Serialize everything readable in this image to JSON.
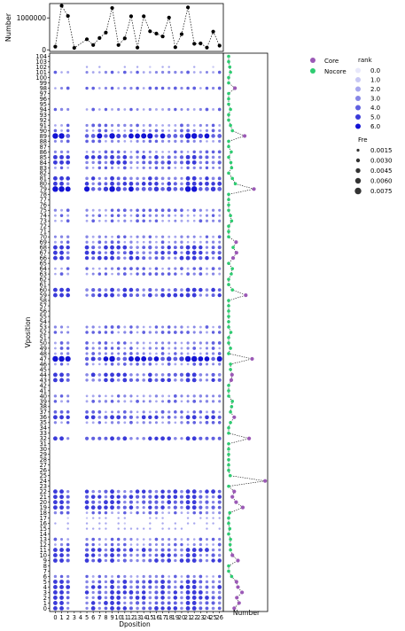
{
  "chart_data": [
    {
      "type": "scatter",
      "panel": "top-marginal",
      "ylabel": "Number",
      "yticks": [
        0,
        1000000
      ],
      "ytick_labels": [
        "0",
        "1000000"
      ],
      "ylim": [
        -50000,
        1450000
      ],
      "x": [
        0,
        1,
        2,
        3,
        4,
        5,
        6,
        7,
        8,
        9,
        10,
        11,
        12,
        13,
        14,
        15,
        16,
        17,
        18,
        19,
        20,
        21,
        22,
        23,
        24,
        25,
        26
      ],
      "y": [
        100000,
        1380000,
        1060000,
        60000,
        null,
        330000,
        150000,
        370000,
        540000,
        1310000,
        150000,
        360000,
        1050000,
        70000,
        1050000,
        580000,
        510000,
        420000,
        1010000,
        80000,
        490000,
        1330000,
        190000,
        200000,
        70000,
        570000,
        130000
      ]
    },
    {
      "type": "scatter",
      "panel": "main",
      "xlabel": "Dposition",
      "ylabel": "Vposition",
      "xticks": [
        0,
        1,
        2,
        3,
        4,
        5,
        6,
        7,
        8,
        9,
        10,
        11,
        12,
        13,
        14,
        15,
        16,
        17,
        18,
        19,
        20,
        21,
        22,
        23,
        24,
        25,
        26
      ],
      "xlim": [
        -0.9,
        26.6
      ],
      "ylim": [
        -0.6,
        104.6
      ],
      "yticks_from": 0,
      "yticks_to": 104,
      "empty_columns": [
        3,
        4
      ],
      "empty_rows": [
        7,
        8,
        14,
        23,
        24,
        25,
        26,
        27,
        28,
        29,
        30,
        31,
        33,
        34,
        38,
        41,
        42,
        45,
        51,
        54,
        55,
        56,
        57,
        58,
        61,
        62,
        65,
        71,
        72,
        76,
        77,
        78,
        82,
        87,
        92,
        93,
        95,
        96,
        97,
        99,
        100,
        103,
        104
      ],
      "sparse_rows": [
        15,
        16,
        17,
        26,
        27,
        28,
        29,
        30,
        31,
        57,
        102,
        103
      ],
      "strong_rows": [
        0,
        1,
        2,
        3,
        4,
        5,
        9,
        10,
        11,
        19,
        20,
        21,
        22,
        24,
        32,
        36,
        43,
        44,
        47,
        59,
        60,
        66,
        67,
        68,
        79,
        80,
        81,
        84,
        85,
        89
      ],
      "peak_rows": [
        24,
        47,
        79,
        89
      ],
      "heavy_columns": [
        0,
        1,
        9,
        21,
        22
      ],
      "legend_rank": {
        "title": "rank",
        "levels": [
          "0.0",
          "1.0",
          "2.0",
          "3.0",
          "4.0",
          "5.0",
          "6.0"
        ],
        "colors": [
          "#e8e8fb",
          "#c8c8f4",
          "#a7a7ee",
          "#8686e6",
          "#6060e0",
          "#3a3ad9",
          "#1212d4"
        ]
      },
      "legend_size": {
        "title": "Fre",
        "levels": [
          "0.0015",
          "0.0030",
          "0.0045",
          "0.0060",
          "0.0075"
        ]
      }
    },
    {
      "type": "scatter",
      "panel": "right-marginal",
      "xlabel": "Number",
      "legend": [
        {
          "name": "Core",
          "color": "#9b59b6"
        },
        {
          "name": "Nocore",
          "color": "#2ecc71"
        }
      ],
      "core_rows": [
        0,
        1,
        2,
        3,
        4,
        5,
        9,
        10,
        19,
        20,
        21,
        22,
        24,
        32,
        36,
        43,
        44,
        47,
        59,
        66,
        67,
        69,
        79,
        89,
        98
      ],
      "values": {
        "0": 0.15,
        "1": 0.28,
        "2": 0.22,
        "3": 0.36,
        "4": 0.25,
        "5": 0.21,
        "6": 0.08,
        "9": 0.25,
        "10": 0.1,
        "11": 0.05,
        "12": 0.04,
        "13": 0.05,
        "15": 0.03,
        "18": 0.03,
        "19": 0.38,
        "20": 0.2,
        "21": 0.1,
        "22": 0.15,
        "24": 0.98,
        "25": 0.04,
        "32": 0.55,
        "35": 0.05,
        "36": 0.15,
        "37": 0.05,
        "38": 0.08,
        "39": 0.1,
        "43": 0.07,
        "44": 0.09,
        "45": 0.05,
        "46": 0.05,
        "47": 0.63,
        "49": 0.05,
        "52": 0.06,
        "59": 0.46,
        "60": 0.1,
        "63": 0.07,
        "64": 0.1,
        "66": 0.12,
        "67": 0.21,
        "68": 0.12,
        "69": 0.2,
        "73": 0.08,
        "74": 0.05,
        "79": 0.68,
        "80": 0.18,
        "81": 0.1,
        "83": 0.08,
        "84": 0.06,
        "86": 0.07,
        "89": 0.43,
        "90": 0.1,
        "91": 0.05,
        "94": 0.05,
        "98": 0.17,
        "101": 0.05,
        "102": 0.03
      }
    }
  ]
}
